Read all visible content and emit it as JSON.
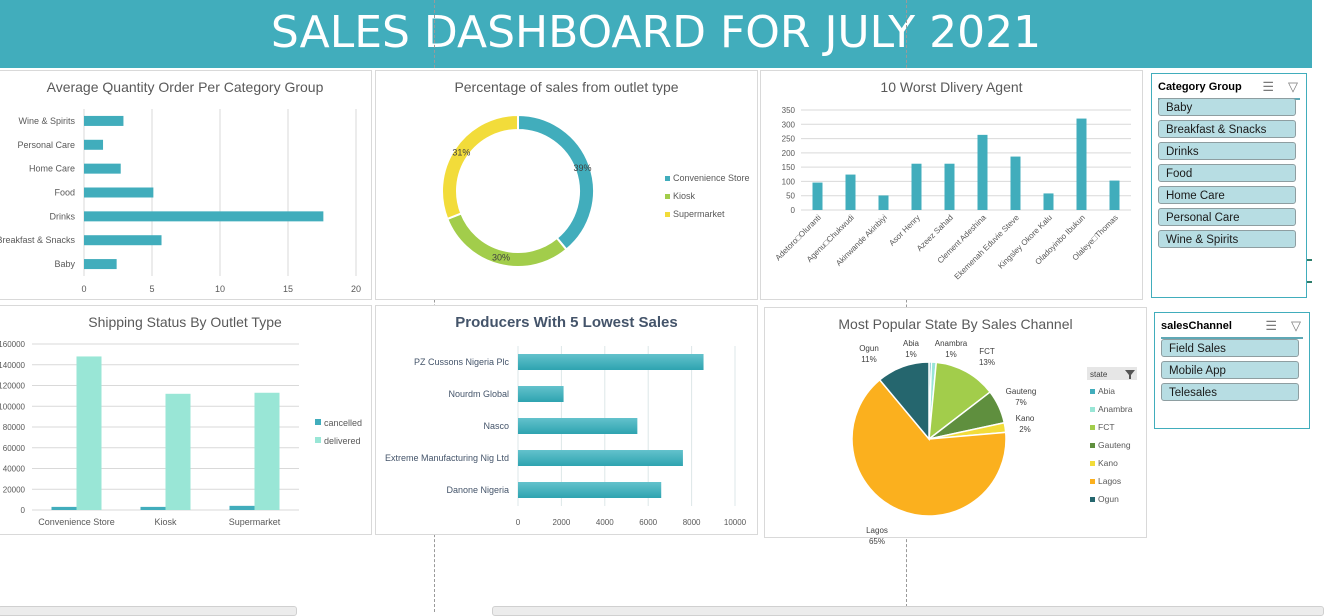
{
  "header": {
    "title": "SALES DASHBOARD FOR JULY 2021"
  },
  "colors": {
    "banner": "#41adbc",
    "teal": "#41adbc",
    "mint": "#99e6d6",
    "kiosk_green": "#a2cd4b",
    "yellow": "#f2dc3a",
    "slicer_item": "#b7dde3"
  },
  "chart_data": [
    {
      "id": "avg_qty",
      "type": "bar",
      "orientation": "horizontal",
      "title": "Average Quantity Order Per Category Group",
      "categories": [
        "Wine & Spirits",
        "Personal Care",
        "Home Care",
        "Food",
        "Drinks",
        "Breakfast & Snacks",
        "Baby"
      ],
      "values": [
        2.9,
        1.4,
        2.7,
        5.1,
        17.6,
        5.7,
        2.4
      ],
      "xlim": [
        0,
        20
      ],
      "xticks": [
        "0",
        "5",
        "10",
        "15",
        "20"
      ],
      "grid": true,
      "color": "#41adbc"
    },
    {
      "id": "outlet_pct",
      "type": "pie",
      "variant": "doughnut",
      "title": "Percentage of sales from outlet type",
      "labels": [
        "Convenience Store",
        "Kiosk",
        "Supermarket"
      ],
      "values": [
        39,
        30,
        31
      ],
      "data_labels": [
        "39%",
        "30%",
        "31%"
      ],
      "colors": [
        "#41adbc",
        "#a2cd4b",
        "#f2dc3a"
      ],
      "legend": "right"
    },
    {
      "id": "worst_agents",
      "type": "bar",
      "title": "10 Worst Dlivery Agent",
      "categories": [
        "Adetoro□Oluranti",
        "Agenu□Chukwudi",
        "Akinwande Akinbiyi",
        "Asor Henry",
        "Azeez Sahad",
        "Clement Adeshina",
        "Ekemenah Eduvie  Steve",
        "Kingsley Okore Kalu",
        "Oladoyinbo Ibukun",
        "Olaleye□Thomas"
      ],
      "values": [
        96,
        124,
        51,
        162,
        162,
        263,
        187,
        58,
        320,
        103
      ],
      "ylim": [
        0,
        350
      ],
      "yticks": [
        "0",
        "50",
        "100",
        "150",
        "200",
        "250",
        "300",
        "350"
      ],
      "grid": true,
      "color": "#41adbc"
    },
    {
      "id": "shipping_status",
      "type": "bar",
      "title": "Shipping Status By Outlet Type",
      "categories": [
        "Convenience Store",
        "Kiosk",
        "Supermarket"
      ],
      "series": [
        {
          "name": "cancelled",
          "values": [
            3000,
            3000,
            4000
          ],
          "color": "#41adbc"
        },
        {
          "name": "delivered",
          "values": [
            148000,
            112000,
            113000
          ],
          "color": "#99e6d6"
        }
      ],
      "ylim": [
        0,
        160000
      ],
      "yticks": [
        "0",
        "20000",
        "40000",
        "60000",
        "80000",
        "100000",
        "120000",
        "140000",
        "160000"
      ],
      "legend": "right",
      "grid": true
    },
    {
      "id": "lowest_producers",
      "type": "bar",
      "orientation": "horizontal",
      "title": "Producers With 5 Lowest Sales",
      "categories": [
        "PZ Cussons Nigeria Plc",
        "Nourdm Global",
        "Nasco",
        "Extreme Manufacturing Nig Ltd",
        "Danone Nigeria"
      ],
      "values": [
        8550,
        2100,
        5500,
        7600,
        6600
      ],
      "xlim": [
        0,
        10000
      ],
      "xticks": [
        "0",
        "2000",
        "4000",
        "6000",
        "8000",
        "10000"
      ],
      "grid": true,
      "color": "#3fb0bd"
    },
    {
      "id": "state_channel",
      "type": "pie",
      "title": "Most Popular State By Sales Channel",
      "labels": [
        "Abia",
        "Anambra",
        "FCT",
        "Gauteng",
        "Kano",
        "Lagos",
        "Ogun"
      ],
      "values": [
        0.5,
        1,
        13,
        7,
        2,
        65,
        11
      ],
      "data_labels": [
        "1%",
        "1%",
        "13%",
        "7%",
        "2%",
        "65%",
        "11%"
      ],
      "colors": [
        "#41adbc",
        "#99e6d6",
        "#a2cd4b",
        "#5f8f3e",
        "#f2dc3a",
        "#fbb01e",
        "#25666e"
      ],
      "legend_title": "state",
      "legend": "right"
    }
  ],
  "slicers": {
    "category": {
      "title": "Category Group",
      "items": [
        "Baby",
        "Breakfast & Snacks",
        "Drinks",
        "Food",
        "Home Care",
        "Personal Care",
        "Wine & Spirits"
      ]
    },
    "channel": {
      "title": "salesChannel",
      "items": [
        "Field Sales",
        "Mobile App",
        "Telesales"
      ]
    }
  }
}
